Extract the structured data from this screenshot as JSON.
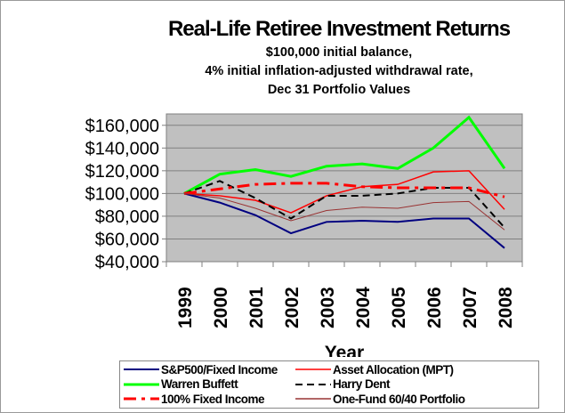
{
  "chart_data": {
    "type": "line",
    "title": "Real-Life Retiree Investment Returns",
    "subtitle": [
      "$100,000 initial balance,",
      "4% initial inflation-adjusted withdrawal rate,",
      "Dec 31 Portfolio Values"
    ],
    "xlabel": "Year",
    "ylabel": "",
    "x": [
      "1999",
      "2000",
      "2001",
      "2002",
      "2003",
      "2004",
      "2005",
      "2006",
      "2007",
      "2008"
    ],
    "ylim": [
      40000,
      170000
    ],
    "yticks": [
      "$40,000",
      "$60,000",
      "$80,000",
      "$100,000",
      "$120,000",
      "$140,000",
      "$160,000"
    ],
    "ytick_values": [
      40000,
      60000,
      80000,
      100000,
      120000,
      140000,
      160000
    ],
    "grid": true,
    "plot_background": "#c0c0c0",
    "legend": "bottom",
    "series": [
      {
        "name": "S&P500/Fixed Income",
        "color": "#000080",
        "dash": "solid",
        "width": 2,
        "values": [
          100000,
          92000,
          81000,
          65000,
          75000,
          76000,
          75000,
          78000,
          78000,
          52000
        ]
      },
      {
        "name": "Asset Allocation (MPT)",
        "color": "#ff0000",
        "dash": "solid",
        "width": 1.5,
        "values": [
          100000,
          98000,
          94000,
          83000,
          98000,
          106000,
          108000,
          119000,
          120000,
          86000
        ]
      },
      {
        "name": "Warren Buffett",
        "color": "#00ff00",
        "dash": "solid",
        "width": 3,
        "values": [
          100000,
          117000,
          121000,
          115000,
          124000,
          126000,
          122000,
          140000,
          167000,
          122000
        ]
      },
      {
        "name": "Harry Dent",
        "color": "#000000",
        "dash": "8,5",
        "width": 2,
        "values": [
          100000,
          111000,
          96000,
          78000,
          98000,
          98000,
          100000,
          105000,
          105000,
          70000
        ]
      },
      {
        "name": "100% Fixed Income",
        "color": "#ff0000",
        "dash": "14,6,4,6",
        "width": 3,
        "values": [
          100000,
          104000,
          108000,
          109000,
          109000,
          106000,
          105000,
          105000,
          105000,
          97000
        ]
      },
      {
        "name": "One-Fund 60/40 Portfolio",
        "color": "#993333",
        "dash": "solid",
        "width": 1,
        "values": [
          100000,
          96000,
          87000,
          76000,
          85000,
          88000,
          87000,
          92000,
          93000,
          68000
        ]
      }
    ]
  }
}
